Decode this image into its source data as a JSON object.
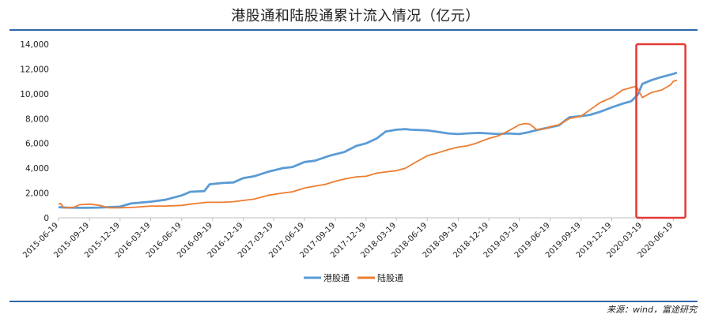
{
  "chart_data": {
    "type": "line",
    "title": "港股通和陆股通累计流入情况（亿元）",
    "ylim": [
      0,
      14000
    ],
    "y_ticks": [
      "0",
      "2,000",
      "4,000",
      "6,000",
      "8,000",
      "10,000",
      "12,000",
      "14,000"
    ],
    "x_ticks": [
      "2015-06-19",
      "2015-09-19",
      "2015-12-19",
      "2016-03-19",
      "2016-06-19",
      "2016-09-19",
      "2016-12-19",
      "2017-03-19",
      "2017-06-19",
      "2017-09-19",
      "2017-12-19",
      "2018-03-19",
      "2018-06-19",
      "2018-09-19",
      "2018-12-19",
      "2019-03-19",
      "2019-06-19",
      "2019-09-19",
      "2019-12-19",
      "2020-03-19",
      "2020-06-19"
    ],
    "x_range": [
      "2015-06-19",
      "2020-06-30"
    ],
    "legend_position": "bottom",
    "grid": false,
    "series": [
      {
        "name": "港股通",
        "color": "#5b9bd5",
        "points": [
          [
            "2015-06-19",
            850
          ],
          [
            "2015-07-15",
            820
          ],
          [
            "2015-09-01",
            800
          ],
          [
            "2015-10-15",
            820
          ],
          [
            "2015-12-19",
            900
          ],
          [
            "2016-01-20",
            1150
          ],
          [
            "2016-03-19",
            1300
          ],
          [
            "2016-05-01",
            1450
          ],
          [
            "2016-06-19",
            1800
          ],
          [
            "2016-07-15",
            2100
          ],
          [
            "2016-08-25",
            2150
          ],
          [
            "2016-09-10",
            2700
          ],
          [
            "2016-10-15",
            2800
          ],
          [
            "2016-11-20",
            2850
          ],
          [
            "2016-12-19",
            3200
          ],
          [
            "2017-01-20",
            3350
          ],
          [
            "2017-03-01",
            3700
          ],
          [
            "2017-04-15",
            4000
          ],
          [
            "2017-05-15",
            4100
          ],
          [
            "2017-06-19",
            4500
          ],
          [
            "2017-07-20",
            4600
          ],
          [
            "2017-09-01",
            5000
          ],
          [
            "2017-10-15",
            5300
          ],
          [
            "2017-11-20",
            5800
          ],
          [
            "2017-12-19",
            6000
          ],
          [
            "2018-01-20",
            6400
          ],
          [
            "2018-02-15",
            6950
          ],
          [
            "2018-03-19",
            7100
          ],
          [
            "2018-04-15",
            7150
          ],
          [
            "2018-05-01",
            7100
          ],
          [
            "2018-06-19",
            7050
          ],
          [
            "2018-07-15",
            6950
          ],
          [
            "2018-08-20",
            6800
          ],
          [
            "2018-09-19",
            6750
          ],
          [
            "2018-10-15",
            6800
          ],
          [
            "2018-11-20",
            6850
          ],
          [
            "2018-12-19",
            6800
          ],
          [
            "2019-01-15",
            6750
          ],
          [
            "2019-02-15",
            6800
          ],
          [
            "2019-03-19",
            6750
          ],
          [
            "2019-04-15",
            6900
          ],
          [
            "2019-05-15",
            7100
          ],
          [
            "2019-06-19",
            7300
          ],
          [
            "2019-07-15",
            7450
          ],
          [
            "2019-08-15",
            8100
          ],
          [
            "2019-09-19",
            8200
          ],
          [
            "2019-10-15",
            8300
          ],
          [
            "2019-11-15",
            8550
          ],
          [
            "2019-12-19",
            8900
          ],
          [
            "2020-01-20",
            9200
          ],
          [
            "2020-02-15",
            9400
          ],
          [
            "2020-03-05",
            9900
          ],
          [
            "2020-03-19",
            10800
          ],
          [
            "2020-04-15",
            11100
          ],
          [
            "2020-05-15",
            11350
          ],
          [
            "2020-06-19",
            11600
          ],
          [
            "2020-06-30",
            11700
          ]
        ]
      },
      {
        "name": "陆股通",
        "color": "#ed7d31",
        "points": [
          [
            "2015-06-19",
            1100
          ],
          [
            "2015-06-25",
            1150
          ],
          [
            "2015-07-05",
            800
          ],
          [
            "2015-08-05",
            850
          ],
          [
            "2015-08-20",
            1050
          ],
          [
            "2015-09-19",
            1100
          ],
          [
            "2015-10-20",
            1000
          ],
          [
            "2015-11-15",
            800
          ],
          [
            "2015-12-19",
            800
          ],
          [
            "2016-02-01",
            850
          ],
          [
            "2016-03-19",
            950
          ],
          [
            "2016-05-01",
            950
          ],
          [
            "2016-06-19",
            1000
          ],
          [
            "2016-07-15",
            1100
          ],
          [
            "2016-09-01",
            1250
          ],
          [
            "2016-10-15",
            1250
          ],
          [
            "2016-11-20",
            1300
          ],
          [
            "2016-12-19",
            1400
          ],
          [
            "2017-01-20",
            1500
          ],
          [
            "2017-03-01",
            1800
          ],
          [
            "2017-04-15",
            2000
          ],
          [
            "2017-05-15",
            2100
          ],
          [
            "2017-06-19",
            2400
          ],
          [
            "2017-07-20",
            2550
          ],
          [
            "2017-08-20",
            2700
          ],
          [
            "2017-09-19",
            2950
          ],
          [
            "2017-10-20",
            3150
          ],
          [
            "2017-11-20",
            3300
          ],
          [
            "2017-12-19",
            3350
          ],
          [
            "2018-01-20",
            3600
          ],
          [
            "2018-02-15",
            3700
          ],
          [
            "2018-03-19",
            3800
          ],
          [
            "2018-04-15",
            4000
          ],
          [
            "2018-05-10",
            4400
          ],
          [
            "2018-06-19",
            5000
          ],
          [
            "2018-07-15",
            5200
          ],
          [
            "2018-08-20",
            5500
          ],
          [
            "2018-09-19",
            5700
          ],
          [
            "2018-10-15",
            5800
          ],
          [
            "2018-11-10",
            6000
          ],
          [
            "2018-12-19",
            6400
          ],
          [
            "2019-01-15",
            6600
          ],
          [
            "2019-02-15",
            7000
          ],
          [
            "2019-03-19",
            7500
          ],
          [
            "2019-04-05",
            7600
          ],
          [
            "2019-04-20",
            7550
          ],
          [
            "2019-05-10",
            7100
          ],
          [
            "2019-06-05",
            7200
          ],
          [
            "2019-06-19",
            7350
          ],
          [
            "2019-07-15",
            7500
          ],
          [
            "2019-08-15",
            8000
          ],
          [
            "2019-09-19",
            8200
          ],
          [
            "2019-10-15",
            8700
          ],
          [
            "2019-11-15",
            9300
          ],
          [
            "2019-12-19",
            9700
          ],
          [
            "2020-01-20",
            10300
          ],
          [
            "2020-02-15",
            10500
          ],
          [
            "2020-03-01",
            10600
          ],
          [
            "2020-03-19",
            9700
          ],
          [
            "2020-04-15",
            10100
          ],
          [
            "2020-05-15",
            10300
          ],
          [
            "2020-06-10",
            10700
          ],
          [
            "2020-06-19",
            11000
          ],
          [
            "2020-06-30",
            11100
          ]
        ]
      }
    ],
    "annotations": [
      {
        "type": "highlight-box",
        "color": "#e53935",
        "x_from": "2020-03-01",
        "x_to": "2020-07-25",
        "y_from": 0,
        "y_to": 14000
      }
    ]
  },
  "source_text": "来源：wind，富途研究"
}
